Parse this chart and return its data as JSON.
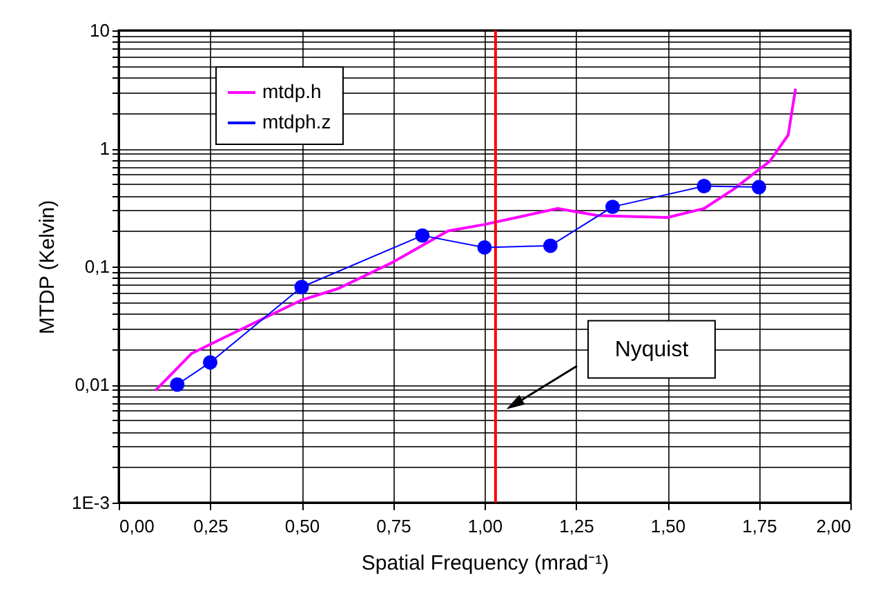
{
  "chart_data": {
    "type": "line",
    "xlabel": "Spatial Frequency (mrad⁻¹)",
    "ylabel": "MTDP (Kelvin)",
    "log": "y",
    "grid": true,
    "legend": "top left",
    "xlim": [
      0,
      2
    ],
    "xticks": [
      {
        "value": 0,
        "label": "0,00"
      },
      {
        "value": 0.25,
        "label": "0,25"
      },
      {
        "value": 0.5,
        "label": "0,50"
      },
      {
        "value": 0.75,
        "label": "0,75"
      },
      {
        "value": 1,
        "label": "1,00"
      },
      {
        "value": 1.25,
        "label": "1,25"
      },
      {
        "value": 1.5,
        "label": "1,50"
      },
      {
        "value": 1.75,
        "label": "1,75"
      },
      {
        "value": 2,
        "label": "2,00"
      }
    ],
    "ylim": [
      0.001,
      10
    ],
    "yticks": [
      {
        "value": 0.001,
        "label": "1E-3"
      },
      {
        "value": 0.002,
        "label": null
      },
      {
        "value": 0.003,
        "label": null
      },
      {
        "value": 0.004,
        "label": null
      },
      {
        "value": 0.005,
        "label": null
      },
      {
        "value": 0.006,
        "label": null
      },
      {
        "value": 0.007,
        "label": null
      },
      {
        "value": 0.008,
        "label": null
      },
      {
        "value": 0.009,
        "label": null
      },
      {
        "value": 0.01,
        "label": "0,01"
      },
      {
        "value": 0.02,
        "label": null
      },
      {
        "value": 0.03,
        "label": null
      },
      {
        "value": 0.04,
        "label": null
      },
      {
        "value": 0.05,
        "label": null
      },
      {
        "value": 0.06,
        "label": null
      },
      {
        "value": 0.07,
        "label": null
      },
      {
        "value": 0.08,
        "label": null
      },
      {
        "value": 0.09,
        "label": null
      },
      {
        "value": 0.1,
        "label": "0,1"
      },
      {
        "value": 0.2,
        "label": null
      },
      {
        "value": 0.3,
        "label": null
      },
      {
        "value": 0.4,
        "label": null
      },
      {
        "value": 0.5,
        "label": null
      },
      {
        "value": 0.6,
        "label": null
      },
      {
        "value": 0.7,
        "label": null
      },
      {
        "value": 0.8,
        "label": null
      },
      {
        "value": 0.9,
        "label": null
      },
      {
        "value": 1,
        "label": "1"
      },
      {
        "value": 2,
        "label": null
      },
      {
        "value": 3,
        "label": null
      },
      {
        "value": 4,
        "label": null
      },
      {
        "value": 5,
        "label": null
      },
      {
        "value": 6,
        "label": null
      },
      {
        "value": 7,
        "label": null
      },
      {
        "value": 8,
        "label": null
      },
      {
        "value": 9,
        "label": null
      },
      {
        "value": 10,
        "label": "10"
      }
    ],
    "series": [
      {
        "name": "mtdp.h",
        "color": "#ff00ff",
        "marker": "none",
        "x": [
          0.1,
          0.2,
          0.31,
          0.5,
          0.6,
          0.75,
          0.9,
          1.0,
          1.2,
          1.31,
          1.5,
          1.6,
          1.68,
          1.78,
          1.83,
          1.85
        ],
        "values": [
          0.0089,
          0.0184,
          0.027,
          0.052,
          0.065,
          0.109,
          0.2,
          0.227,
          0.31,
          0.27,
          0.26,
          0.31,
          0.45,
          0.78,
          1.3,
          3.2
        ]
      },
      {
        "name": "mtdph.z",
        "color": "#0000ff",
        "marker": "circle",
        "x": [
          0.16,
          0.25,
          0.5,
          0.83,
          1.0,
          1.18,
          1.35,
          1.6,
          1.75
        ],
        "values": [
          0.01,
          0.0154,
          0.067,
          0.183,
          0.145,
          0.15,
          0.32,
          0.48,
          0.47
        ]
      }
    ],
    "ref_lines": [
      {
        "axis": "x",
        "value": 1.03,
        "color": "#ff0000"
      }
    ],
    "annotations": [
      "Nyquist"
    ]
  }
}
